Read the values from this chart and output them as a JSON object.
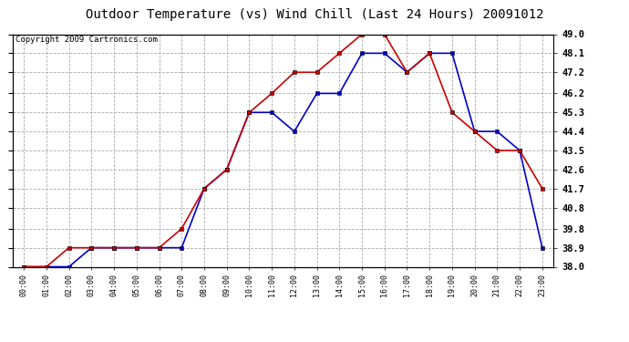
{
  "title": "Outdoor Temperature (vs) Wind Chill (Last 24 Hours) 20091012",
  "copyright": "Copyright 2009 Cartronics.com",
  "hours": [
    "00:00",
    "01:00",
    "02:00",
    "03:00",
    "04:00",
    "05:00",
    "06:00",
    "07:00",
    "08:00",
    "09:00",
    "10:00",
    "11:00",
    "12:00",
    "13:00",
    "14:00",
    "15:00",
    "16:00",
    "17:00",
    "18:00",
    "19:00",
    "20:00",
    "21:00",
    "22:00",
    "23:00"
  ],
  "temp": [
    38.0,
    38.0,
    38.9,
    38.9,
    38.9,
    38.9,
    38.9,
    39.8,
    41.7,
    42.6,
    45.3,
    46.2,
    47.2,
    47.2,
    48.1,
    49.0,
    49.0,
    47.2,
    48.1,
    45.3,
    44.4,
    43.5,
    43.5,
    41.7
  ],
  "windchill": [
    38.0,
    38.0,
    38.0,
    38.9,
    38.9,
    38.9,
    38.9,
    38.9,
    41.7,
    42.6,
    45.3,
    45.3,
    44.4,
    46.2,
    46.2,
    48.1,
    48.1,
    47.2,
    48.1,
    48.1,
    44.4,
    44.4,
    43.5,
    38.9
  ],
  "ylim": [
    38.0,
    49.0
  ],
  "yticks": [
    38.0,
    38.9,
    39.8,
    40.8,
    41.7,
    42.6,
    43.5,
    44.4,
    45.3,
    46.2,
    47.2,
    48.1,
    49.0
  ],
  "temp_color": "#cc0000",
  "windchill_color": "#0000cc",
  "bg_color": "#ffffff",
  "plot_bg_color": "#ffffff",
  "grid_color": "#aaaaaa",
  "title_fontsize": 10,
  "copyright_fontsize": 6.5
}
